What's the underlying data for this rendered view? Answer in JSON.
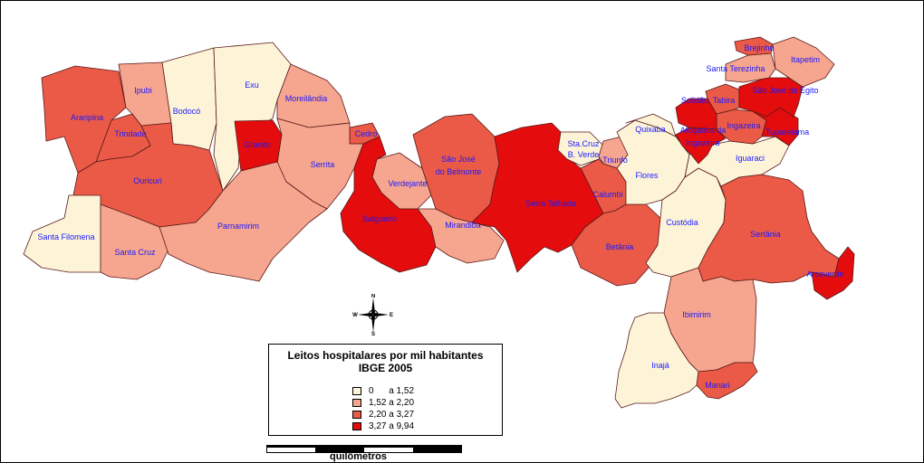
{
  "colors": {
    "class1": "#fdf4d8",
    "class2": "#f6a58e",
    "class3": "#ea5a46",
    "class4": "#e40c0c",
    "label_text": "#1a1aff"
  },
  "municipalities": [
    {
      "name": "Araripina",
      "class": 3
    },
    {
      "name": "Ipubi",
      "class": 2
    },
    {
      "name": "Bodocó",
      "class": 1
    },
    {
      "name": "Exu",
      "class": 1
    },
    {
      "name": "Moreilândia",
      "class": 2
    },
    {
      "name": "Trindade",
      "class": 3
    },
    {
      "name": "Granito",
      "class": 4
    },
    {
      "name": "Cedro",
      "class": 3
    },
    {
      "name": "Ouricuri",
      "class": 3
    },
    {
      "name": "Serrita",
      "class": 2
    },
    {
      "name": "Santa Filomena",
      "class": 1
    },
    {
      "name": "Santa Cruz",
      "class": 2
    },
    {
      "name": "Parnamirim",
      "class": 2
    },
    {
      "name": "Verdejante",
      "class": 2
    },
    {
      "name": "Salgueiro",
      "class": 4
    },
    {
      "name": "São José do Belmonte",
      "class": 3
    },
    {
      "name": "Mirandiba",
      "class": 2
    },
    {
      "name": "Serra Talhada",
      "class": 4
    },
    {
      "name": "Sta.Cruz B. Verde",
      "class": 1
    },
    {
      "name": "Triunfo",
      "class": 2
    },
    {
      "name": "Calumbi",
      "class": 3
    },
    {
      "name": "Betânia",
      "class": 3
    },
    {
      "name": "Flores",
      "class": 1
    },
    {
      "name": "Quixaba",
      "class": 1
    },
    {
      "name": "Custódia",
      "class": 1
    },
    {
      "name": "Iguaraci",
      "class": 1
    },
    {
      "name": "Afogados da Ingazeira",
      "class": 4
    },
    {
      "name": "Ingazeira",
      "class": 3
    },
    {
      "name": "Tuparetama",
      "class": 4
    },
    {
      "name": "Solidão",
      "class": 4
    },
    {
      "name": "Tabira",
      "class": 3
    },
    {
      "name": "São José do Egito",
      "class": 4
    },
    {
      "name": "Santa Terezinha",
      "class": 2
    },
    {
      "name": "Brejinho",
      "class": 3
    },
    {
      "name": "Itapetim",
      "class": 2
    },
    {
      "name": "Sertânia",
      "class": 3
    },
    {
      "name": "Arcoverde",
      "class": 4
    },
    {
      "name": "Ibimirim",
      "class": 2
    },
    {
      "name": "Inajá",
      "class": 1
    },
    {
      "name": "Manari",
      "class": 3
    }
  ],
  "legend": {
    "title_line1": "Leitos hospitalares por mil habitantes",
    "title_line2": "IBGE 2005",
    "classes": [
      {
        "label": "0      a 1,52",
        "color": "#fdf4d8"
      },
      {
        "label": "1,52 a 2,20",
        "color": "#f6a58e"
      },
      {
        "label": "2,20 a 3,27",
        "color": "#ea5a46"
      },
      {
        "label": "3,27 a 9,94",
        "color": "#e40c0c"
      }
    ]
  },
  "north_arrow": {
    "n": "N",
    "s": "S",
    "e": "E",
    "w": "W"
  },
  "scale": {
    "label": "quilômetros"
  }
}
